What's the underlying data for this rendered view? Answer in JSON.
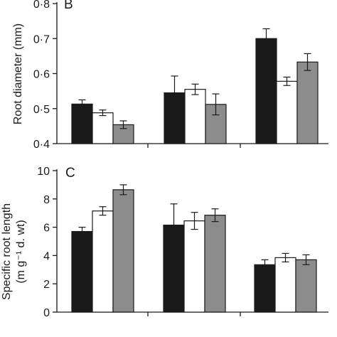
{
  "chart_data": [
    {
      "type": "bar",
      "panel_label": "B",
      "ylabel": "Root diameter (mm)",
      "ylim": [
        0.4,
        0.8
      ],
      "yticks": [
        "0·4",
        "0·5",
        "0·6",
        "0·7",
        "0·8"
      ],
      "ytick_values": [
        0.4,
        0.5,
        0.6,
        0.7,
        0.8
      ],
      "categories": [
        "",
        "",
        ""
      ],
      "series": [
        {
          "values": [
            0.513,
            0.545,
            0.7
          ],
          "errors": [
            0.012,
            0.048,
            0.028
          ],
          "color": "#1a1a1a"
        },
        {
          "values": [
            0.488,
            0.555,
            0.578
          ],
          "errors": [
            0.008,
            0.015,
            0.012
          ],
          "color": "#ffffff"
        },
        {
          "values": [
            0.454,
            0.512,
            0.633
          ],
          "errors": [
            0.011,
            0.03,
            0.024
          ],
          "color": "#8c8c8c"
        }
      ]
    },
    {
      "type": "bar",
      "panel_label": "C",
      "ylabel": "Specific root length",
      "ylabel_line2": "(m g⁻¹ d. wt)",
      "ylim": [
        0,
        10
      ],
      "yticks": [
        "0",
        "2",
        "4",
        "6",
        "8",
        "10"
      ],
      "ytick_values": [
        0,
        2,
        4,
        6,
        8,
        10
      ],
      "categories": [
        "",
        "",
        ""
      ],
      "series": [
        {
          "values": [
            5.7,
            6.15,
            3.35
          ],
          "errors": [
            0.3,
            1.5,
            0.35
          ],
          "color": "#1a1a1a"
        },
        {
          "values": [
            7.15,
            6.45,
            3.85
          ],
          "errors": [
            0.3,
            0.6,
            0.3
          ],
          "color": "#ffffff"
        },
        {
          "values": [
            8.65,
            6.85,
            3.7
          ],
          "errors": [
            0.35,
            0.45,
            0.35
          ],
          "color": "#8c8c8c"
        }
      ]
    }
  ]
}
